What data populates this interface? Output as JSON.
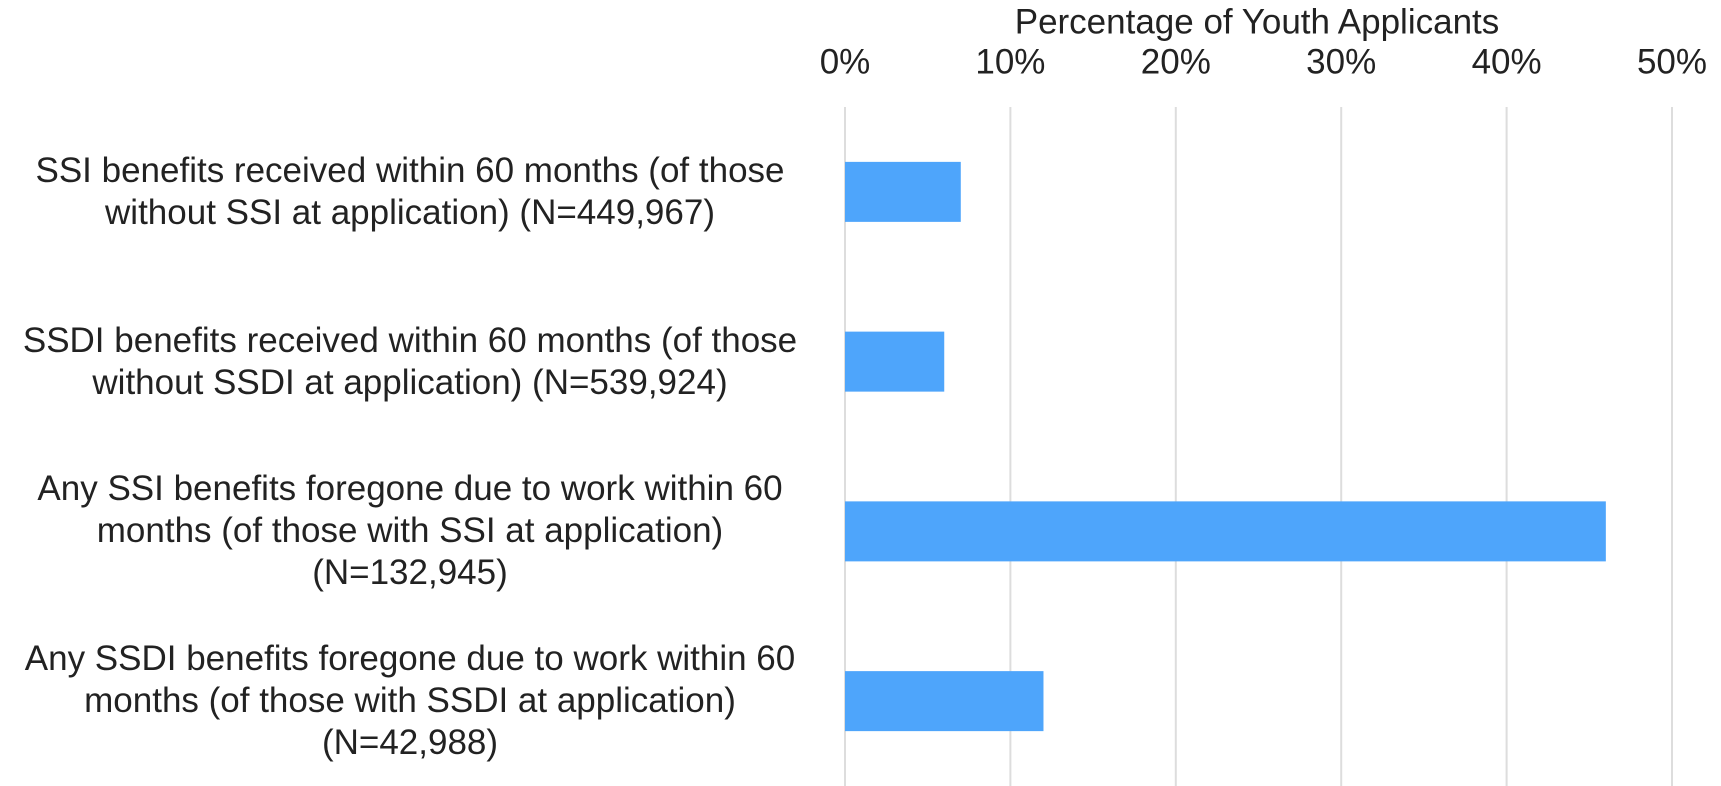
{
  "chart_data": {
    "type": "bar",
    "orientation": "horizontal",
    "x_axis_label": "Percentage of Youth Applicants",
    "categories": [
      "SSI benefits received within 60 months (of those without SSI at application) (N=449,967)",
      "SSDI benefits received within 60 months (of those without SSDI at application) (N=539,924)",
      "Any SSI benefits foregone due to work within 60 months (of those with SSI at application) (N=132,945)",
      "Any SSDI benefits foregone due to work within 60 months (of those with SSDI at application) (N=42,988)"
    ],
    "values": [
      7,
      6,
      46,
      12
    ],
    "color": "#4ea5fb",
    "xlim": [
      0,
      50
    ],
    "xticks": [
      {
        "value": 0,
        "label": "0%"
      },
      {
        "value": 10,
        "label": "10%"
      },
      {
        "value": 20,
        "label": "20%"
      },
      {
        "value": 30,
        "label": "30%"
      },
      {
        "value": 40,
        "label": "40%"
      },
      {
        "value": 50,
        "label": "50%"
      }
    ],
    "grid": true
  }
}
